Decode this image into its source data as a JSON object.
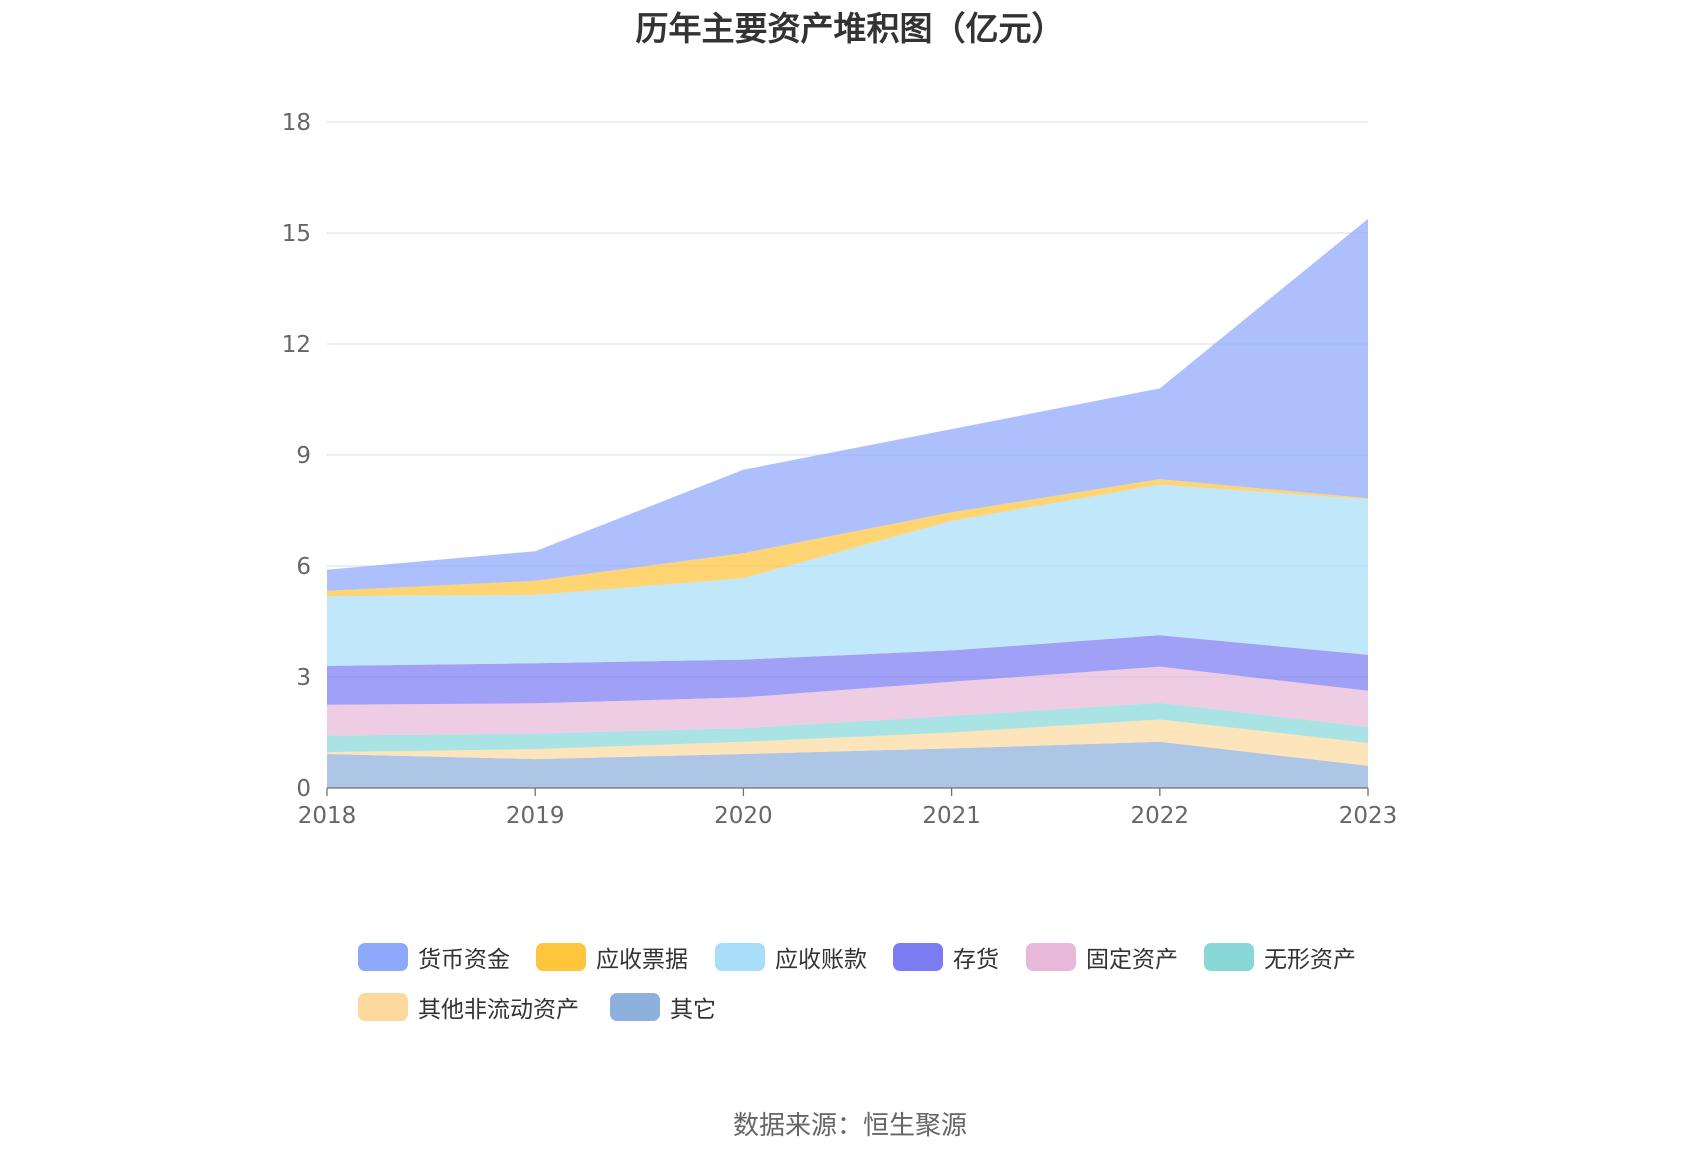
{
  "chart_data": {
    "type": "area",
    "stacked": true,
    "title": "历年主要资产堆积图（亿元）",
    "categories": [
      "2018",
      "2019",
      "2020",
      "2021",
      "2022",
      "2023"
    ],
    "ylim": [
      0,
      18
    ],
    "yticks": [
      0,
      3,
      6,
      9,
      12,
      15,
      18
    ],
    "grid": true,
    "legend_position": "bottom",
    "series": [
      {
        "name": "其它",
        "color": "#8eb0dc",
        "values": [
          0.92,
          0.78,
          0.92,
          1.07,
          1.25,
          0.6
        ]
      },
      {
        "name": "其他非流动资产",
        "color": "#fdd9a0",
        "values": [
          0.05,
          0.27,
          0.33,
          0.43,
          0.6,
          0.62
        ]
      },
      {
        "name": "无形资产",
        "color": "#88d8d8",
        "values": [
          0.45,
          0.42,
          0.37,
          0.45,
          0.45,
          0.43
        ]
      },
      {
        "name": "固定资产",
        "color": "#e8b8d8",
        "values": [
          0.83,
          0.82,
          0.83,
          0.92,
          0.98,
          0.98
        ]
      },
      {
        "name": "存货",
        "color": "#7b7cf2",
        "values": [
          1.05,
          1.08,
          1.02,
          0.85,
          0.85,
          0.97
        ]
      },
      {
        "name": "应收账款",
        "color": "#a8def8",
        "values": [
          1.88,
          1.85,
          2.2,
          3.5,
          4.07,
          4.2
        ]
      },
      {
        "name": "应收票据",
        "color": "#ffc53d",
        "values": [
          0.15,
          0.38,
          0.68,
          0.23,
          0.15,
          0.03
        ]
      },
      {
        "name": "货币资金",
        "color": "#8ea8fc",
        "values": [
          0.57,
          0.8,
          2.25,
          2.25,
          2.45,
          7.55
        ]
      }
    ],
    "source": "数据来源：恒生聚源"
  },
  "legend_order": [
    "货币资金",
    "应收票据",
    "应收账款",
    "存货",
    "固定资产",
    "无形资产",
    "其他非流动资产",
    "其它"
  ]
}
